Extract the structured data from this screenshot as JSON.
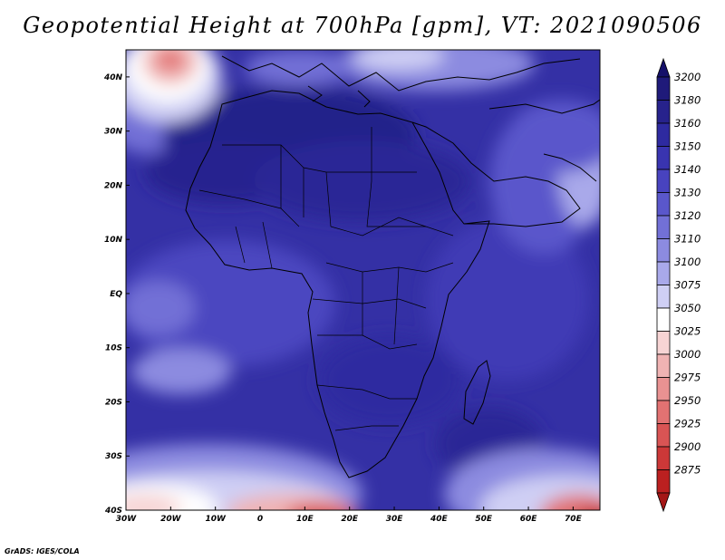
{
  "title": "Geopotential Height at 700hPa [gpm], VT: 2021090506",
  "credit": "GrADS: IGES/COLA",
  "map": {
    "lon_range": [
      -30,
      76
    ],
    "lat_range": [
      -40,
      45
    ],
    "lat_ticks": [
      {
        "lat": 40,
        "label": "40N"
      },
      {
        "lat": 30,
        "label": "30N"
      },
      {
        "lat": 20,
        "label": "20N"
      },
      {
        "lat": 10,
        "label": "10N"
      },
      {
        "lat": 0,
        "label": "EQ"
      },
      {
        "lat": -10,
        "label": "10S"
      },
      {
        "lat": -20,
        "label": "20S"
      },
      {
        "lat": -30,
        "label": "30S"
      },
      {
        "lat": -40,
        "label": "40S"
      }
    ],
    "lon_ticks": [
      {
        "lon": -30,
        "label": "30W"
      },
      {
        "lon": -20,
        "label": "20W"
      },
      {
        "lon": -10,
        "label": "10W"
      },
      {
        "lon": 0,
        "label": "0"
      },
      {
        "lon": 10,
        "label": "10E"
      },
      {
        "lon": 20,
        "label": "20E"
      },
      {
        "lon": 30,
        "label": "30E"
      },
      {
        "lon": 40,
        "label": "40E"
      },
      {
        "lon": 50,
        "label": "50E"
      },
      {
        "lon": 60,
        "label": "60E"
      },
      {
        "lon": 70,
        "label": "70E"
      }
    ]
  },
  "colorbar": {
    "levels": [
      {
        "label": "3200",
        "color": "#1f1a7a"
      },
      {
        "label": "3180",
        "color": "#27228c"
      },
      {
        "label": "3160",
        "color": "#2e2aa0"
      },
      {
        "label": "3150",
        "color": "#3934b0"
      },
      {
        "label": "3140",
        "color": "#4843bf"
      },
      {
        "label": "3130",
        "color": "#5a57cb"
      },
      {
        "label": "3120",
        "color": "#7270d6"
      },
      {
        "label": "3110",
        "color": "#8c8be0"
      },
      {
        "label": "3100",
        "color": "#a9a9ea"
      },
      {
        "label": "3075",
        "color": "#cfcff4"
      },
      {
        "label": "3050",
        "color": "#ffffff"
      },
      {
        "label": "3025",
        "color": "#f7d4d4"
      },
      {
        "label": "3000",
        "color": "#f0b3b3"
      },
      {
        "label": "2975",
        "color": "#e99292"
      },
      {
        "label": "2950",
        "color": "#e27272"
      },
      {
        "label": "2925",
        "color": "#d95454"
      },
      {
        "label": "2900",
        "color": "#cc3838"
      },
      {
        "label": "2875",
        "color": "#bb2020"
      }
    ],
    "top_arrow_color": "#15106a",
    "bottom_arrow_color": "#a41616"
  }
}
